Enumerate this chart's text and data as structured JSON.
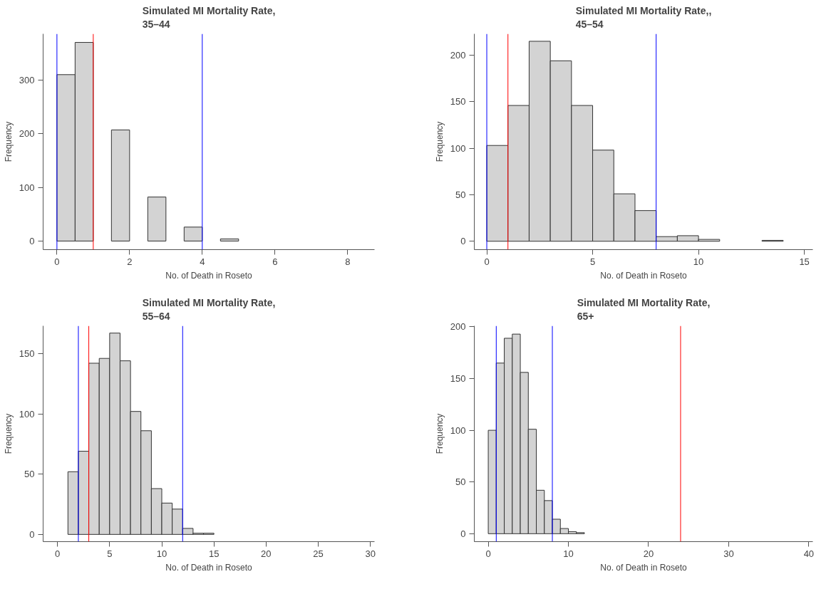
{
  "chart_data": [
    {
      "type": "histogram",
      "title": "Simulated MI Mortality Rate,\n35–44",
      "xlabel": "No. of Death in Roseto",
      "ylabel": "Frequency",
      "color": "#d3d3d3",
      "bins": [
        0,
        0.5,
        1,
        1.5,
        2,
        2.5,
        3,
        3.5,
        4,
        4.5,
        5
      ],
      "values": [
        310,
        370,
        0,
        207,
        0,
        82,
        0,
        26,
        0,
        4
      ],
      "xlim": [
        -0.38,
        8.74
      ],
      "xticks": [
        0,
        2,
        4,
        6,
        8
      ],
      "ylim": [
        -16,
        386
      ],
      "yticks": [
        0,
        100,
        200,
        300
      ],
      "ref_lines": [
        {
          "axis": "x",
          "value": 0,
          "color": "#0000ff"
        },
        {
          "axis": "x",
          "value": 4,
          "color": "#0000ff"
        },
        {
          "axis": "x",
          "value": 1,
          "color": "#ff0000"
        }
      ]
    },
    {
      "type": "histogram",
      "title": "Simulated MI Mortality Rate,,\n45–54",
      "xlabel": "No. of Death in Roseto",
      "ylabel": "Frequency",
      "color": "#d3d3d3",
      "bins": [
        0,
        1,
        2,
        3,
        4,
        5,
        6,
        7,
        8,
        9,
        10,
        11,
        12,
        13,
        14
      ],
      "values": [
        103,
        146,
        215,
        194,
        146,
        98,
        51,
        33,
        5,
        6,
        2,
        0,
        0,
        1
      ],
      "xlim": [
        -0.59,
        15.4
      ],
      "xticks": [
        0,
        5,
        10,
        15
      ],
      "ylim": [
        -9,
        223
      ],
      "yticks": [
        0,
        50,
        100,
        150,
        200
      ],
      "ref_lines": [
        {
          "axis": "x",
          "value": 0,
          "color": "#0000ff"
        },
        {
          "axis": "x",
          "value": 8,
          "color": "#0000ff"
        },
        {
          "axis": "x",
          "value": 1,
          "color": "#ff0000"
        }
      ]
    },
    {
      "type": "histogram",
      "title": "Simulated MI Mortality Rate,\n55–64",
      "xlabel": "No. of Death in Roseto",
      "ylabel": "Frequency",
      "color": "#d3d3d3",
      "bins": [
        1,
        2,
        3,
        4,
        5,
        6,
        7,
        8,
        9,
        10,
        11,
        12,
        13,
        14,
        15
      ],
      "values": [
        52,
        69,
        142,
        146,
        167,
        144,
        102,
        86,
        38,
        26,
        21,
        5,
        1,
        1
      ],
      "xlim": [
        -1.38,
        30.4
      ],
      "xticks": [
        0,
        5,
        10,
        15,
        20,
        25,
        30
      ],
      "ylim": [
        -6,
        173
      ],
      "yticks": [
        0,
        50,
        100,
        150
      ],
      "ref_lines": [
        {
          "axis": "x",
          "value": 2,
          "color": "#0000ff"
        },
        {
          "axis": "x",
          "value": 12,
          "color": "#0000ff"
        },
        {
          "axis": "x",
          "value": 3,
          "color": "#ff0000"
        }
      ]
    },
    {
      "type": "histogram",
      "title": "Simulated MI Mortality Rate,\n65+",
      "xlabel": "No. of Death in Roseto",
      "ylabel": "Frequency",
      "color": "#d3d3d3",
      "bins": [
        0,
        1,
        2,
        3,
        4,
        5,
        6,
        7,
        8,
        9,
        10,
        11,
        12
      ],
      "values": [
        100,
        165,
        189,
        193,
        156,
        101,
        42,
        32,
        14,
        5,
        2,
        1
      ],
      "xlim": [
        -1.74,
        40.5
      ],
      "xticks": [
        0,
        10,
        20,
        30,
        40
      ],
      "ylim": [
        -7.7,
        201
      ],
      "yticks": [
        0,
        50,
        100,
        150,
        200
      ],
      "ref_lines": [
        {
          "axis": "x",
          "value": 1,
          "color": "#0000ff"
        },
        {
          "axis": "x",
          "value": 8,
          "color": "#0000ff"
        },
        {
          "axis": "x",
          "value": 24,
          "color": "#ff0000"
        }
      ]
    }
  ]
}
